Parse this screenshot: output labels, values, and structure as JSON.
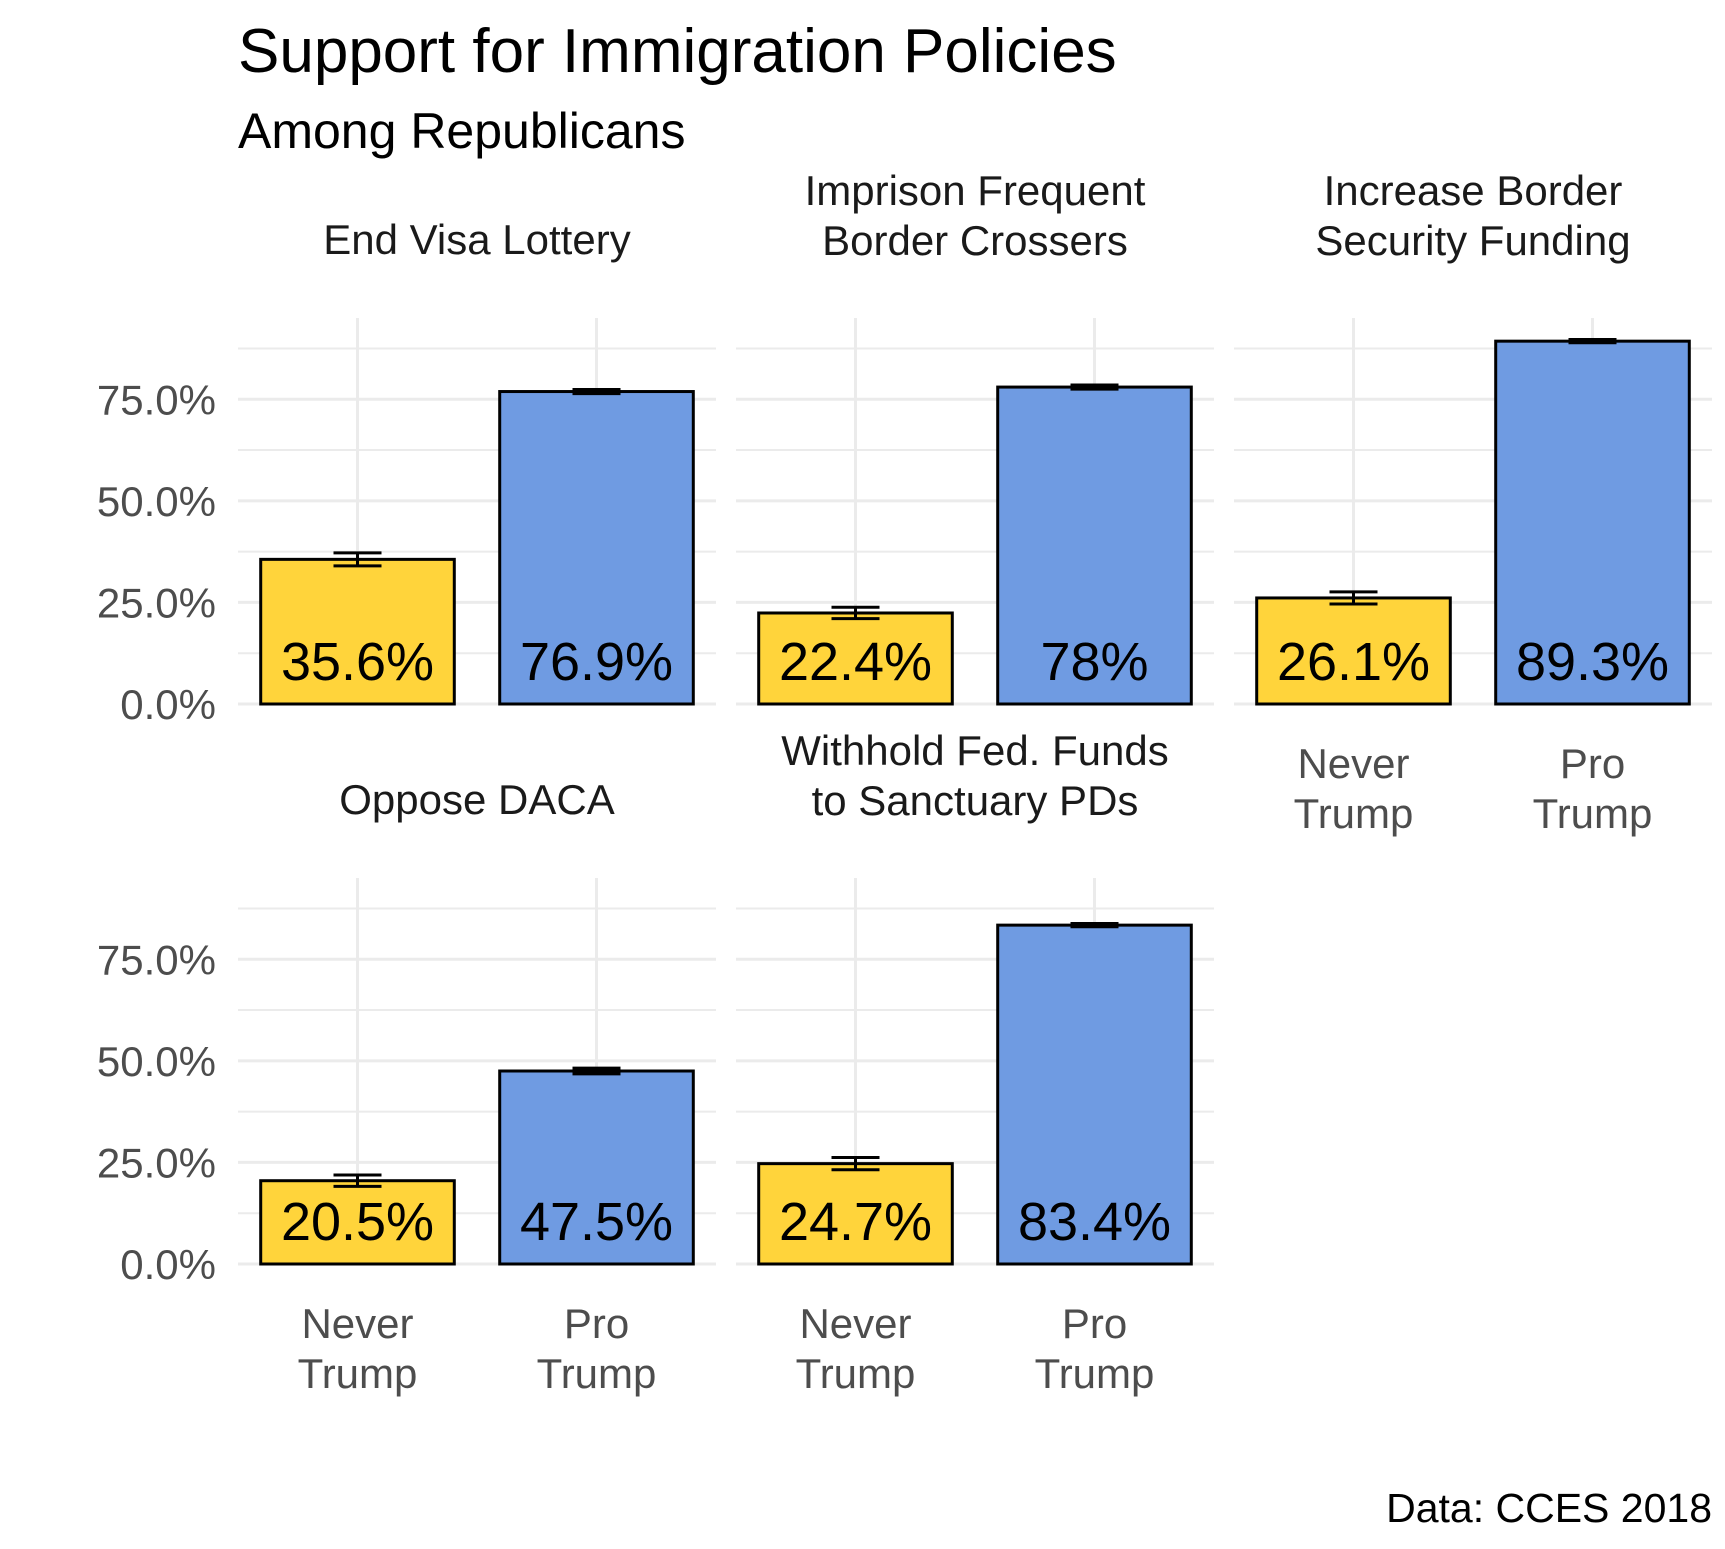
{
  "chart_data": {
    "type": "bar",
    "title": "Support for Immigration Policies",
    "subtitle": "Among Republicans",
    "caption": "Data: CCES 2018",
    "categories": [
      "Never\nTrump",
      "Pro\nTrump"
    ],
    "ylim": [
      0,
      95
    ],
    "yticks": [
      0,
      25,
      50,
      75
    ],
    "ytick_labels": [
      "0.0%",
      "25.0%",
      "50.0%",
      "75.0%"
    ],
    "grid": true,
    "colors": {
      "Never\nTrump": "#FFD43B",
      "Pro\nTrump": "#6F9BE2"
    },
    "facets": [
      {
        "title": "End Visa Lottery",
        "values": [
          35.6,
          76.9
        ],
        "labels": [
          "35.6%",
          "76.9%"
        ],
        "errors": [
          [
            34.0,
            37.2
          ],
          [
            76.4,
            77.4
          ]
        ]
      },
      {
        "title": "Imprison Frequent\nBorder Crossers",
        "values": [
          22.4,
          78.0
        ],
        "labels": [
          "22.4%",
          "78%"
        ],
        "errors": [
          [
            21.0,
            23.8
          ],
          [
            77.5,
            78.5
          ]
        ]
      },
      {
        "title": "Increase Border\nSecurity Funding",
        "values": [
          26.1,
          89.3
        ],
        "labels": [
          "26.1%",
          "89.3%"
        ],
        "errors": [
          [
            24.6,
            27.6
          ],
          [
            88.9,
            89.7
          ]
        ]
      },
      {
        "title": "Oppose DACA",
        "values": [
          20.5,
          47.5
        ],
        "labels": [
          "20.5%",
          "47.5%"
        ],
        "errors": [
          [
            19.1,
            21.9
          ],
          [
            46.8,
            48.2
          ]
        ]
      },
      {
        "title": "Withhold Fed. Funds\nto Sanctuary PDs",
        "values": [
          24.7,
          83.4
        ],
        "labels": [
          "24.7%",
          "83.4%"
        ],
        "errors": [
          [
            23.2,
            26.2
          ],
          [
            83.0,
            83.8
          ]
        ]
      }
    ]
  }
}
